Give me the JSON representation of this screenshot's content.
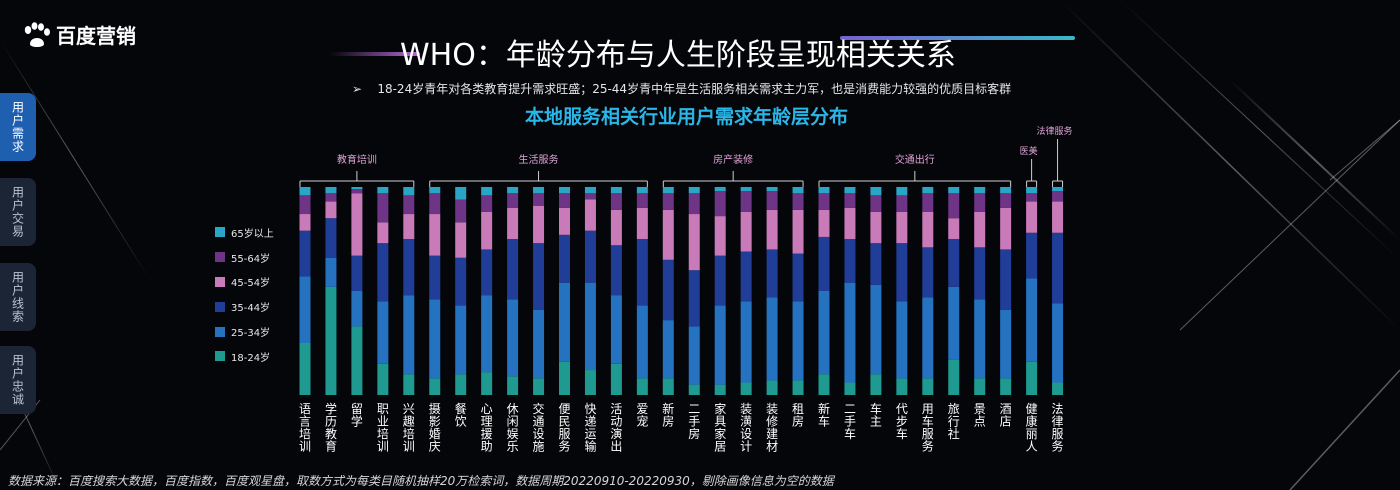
{
  "brand": {
    "name": "百度营销"
  },
  "header": {
    "title": "WHO：年龄分布与人生阶段呈现相关关系",
    "bullet": "➢",
    "subtitle": "18-24岁青年对各类教育提升需求旺盛；25-44岁青中年是生活服务相关需求主力军，也是消费能力较强的优质目标客群"
  },
  "side_nav": [
    {
      "label": "用户需求",
      "active": true
    },
    {
      "label": "用户交易",
      "active": false
    },
    {
      "label": "用户线索",
      "active": false
    },
    {
      "label": "用户忠诚",
      "active": false
    }
  ],
  "footer": {
    "source": "数据来源：百度搜索大数据，百度指数，百度观星盘，取数方式为每类目随机抽样20万检索词，数据周期20220910-20220930，剔除画像信息为空的数据"
  },
  "colors": {
    "age_18_24": "#1e9a90",
    "age_25_34": "#2472c0",
    "age_35_44": "#203e98",
    "age_45_54": "#c97ab9",
    "age_55_64": "#6e3486",
    "age_65_plus": "#2aa5c6",
    "chart_title": "#2bb6e8"
  },
  "chart_data": {
    "type": "bar",
    "stacked": true,
    "percent": true,
    "title": "本地服务相关行业用户需求年龄层分布",
    "ylim": [
      0,
      100
    ],
    "categories": [
      "语言培训",
      "学历教育",
      "留学",
      "职业培训",
      "兴趣培训",
      "摄影婚庆",
      "餐饮",
      "心理援助",
      "休闲娱乐",
      "交通设施",
      "便民服务",
      "快递运输",
      "活动演出",
      "爱宠",
      "新房",
      "二手房",
      "家具家居",
      "装潢设计",
      "装修建材",
      "租房",
      "新车",
      "二手车",
      "车主",
      "代步车",
      "用车服务",
      "旅行社",
      "景点",
      "酒店",
      "健康丽人",
      "法律服务"
    ],
    "groups": [
      {
        "name": "教育培训",
        "from": 0,
        "to": 4
      },
      {
        "name": "生活服务",
        "from": 5,
        "to": 13
      },
      {
        "name": "房产装修",
        "from": 14,
        "to": 19
      },
      {
        "name": "交通出行",
        "from": 20,
        "to": 27
      },
      {
        "name": "医美",
        "from": 28,
        "to": 28
      },
      {
        "name": "法律服务",
        "from": 29,
        "to": 29
      }
    ],
    "series": [
      {
        "name": "18-24岁",
        "values": [
          25,
          52,
          33,
          15,
          10,
          8,
          10,
          11,
          9,
          8,
          16,
          12,
          15,
          8,
          8,
          5,
          5,
          6,
          7,
          7,
          10,
          6,
          10,
          8,
          8,
          17,
          8,
          8,
          16,
          6
        ]
      },
      {
        "name": "25-34岁",
        "values": [
          32,
          14,
          17,
          30,
          38,
          38,
          33,
          37,
          37,
          33,
          38,
          42,
          33,
          35,
          28,
          28,
          38,
          39,
          40,
          38,
          40,
          48,
          43,
          37,
          39,
          35,
          38,
          33,
          40,
          38
        ]
      },
      {
        "name": "35-44岁",
        "values": [
          22,
          19,
          17,
          28,
          27,
          21,
          23,
          22,
          29,
          32,
          23,
          25,
          24,
          32,
          29,
          27,
          24,
          24,
          23,
          23,
          26,
          21,
          20,
          28,
          24,
          23,
          25,
          29,
          22,
          34
        ]
      },
      {
        "name": "45-54岁",
        "values": [
          8,
          8,
          30,
          10,
          12,
          20,
          17,
          18,
          15,
          18,
          13,
          15,
          17,
          15,
          24,
          27,
          19,
          19,
          19,
          21,
          13,
          15,
          15,
          15,
          17,
          10,
          17,
          20,
          15,
          15
        ]
      },
      {
        "name": "55-64岁",
        "values": [
          9,
          4,
          2,
          14,
          9,
          10,
          11,
          8,
          7,
          6,
          7,
          3,
          8,
          7,
          8,
          10,
          12,
          10,
          9,
          8,
          8,
          7,
          8,
          8,
          9,
          12,
          9,
          7,
          4,
          5
        ]
      },
      {
        "name": "65岁以上",
        "values": [
          4,
          3,
          1,
          3,
          4,
          3,
          6,
          4,
          3,
          3,
          3,
          3,
          3,
          3,
          3,
          3,
          2,
          2,
          2,
          3,
          3,
          3,
          4,
          4,
          3,
          3,
          3,
          3,
          3,
          2
        ]
      }
    ],
    "legend_position": "left"
  }
}
